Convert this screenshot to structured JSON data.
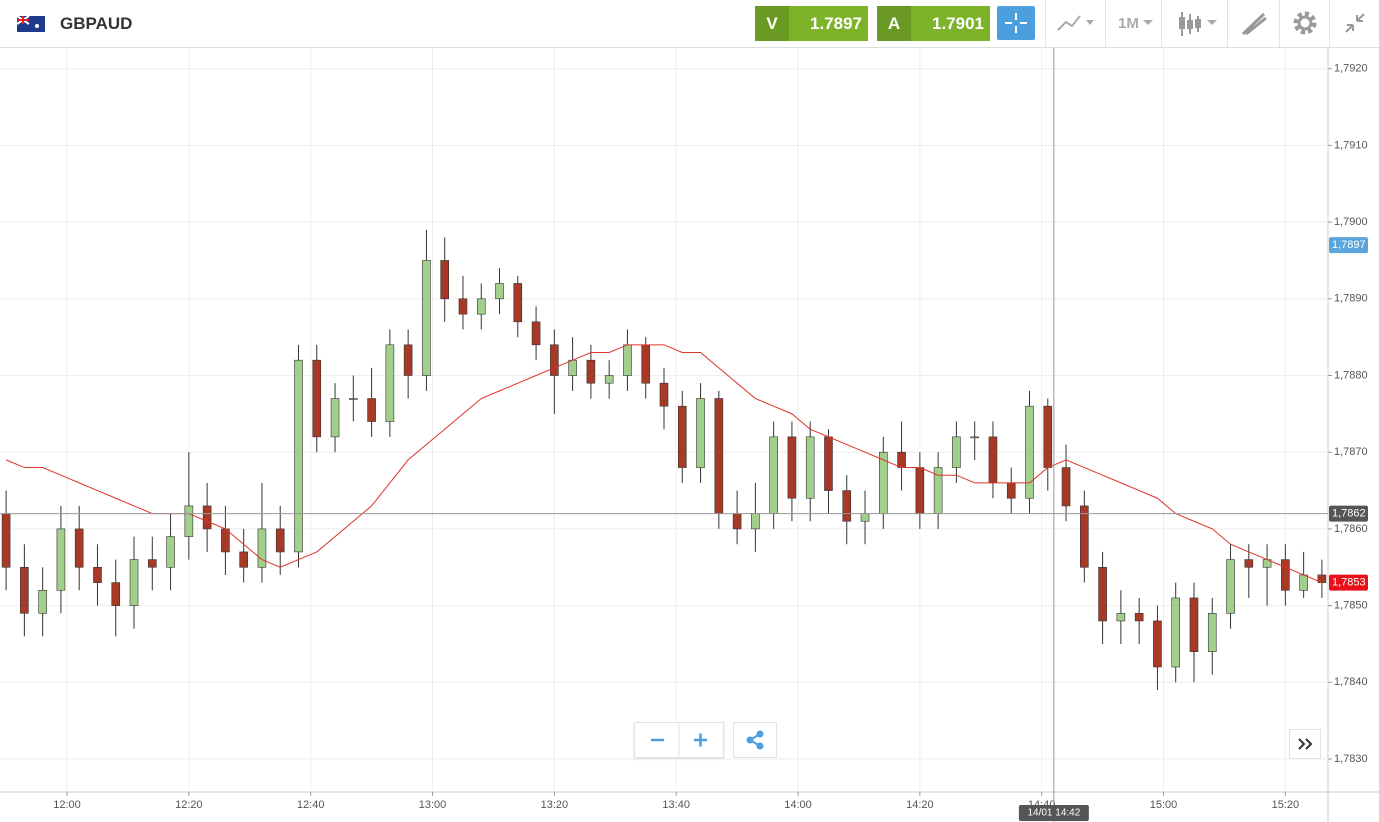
{
  "header": {
    "symbol": "GBPAUD",
    "sell_label": "V",
    "sell_price": "1.7897",
    "buy_label": "A",
    "buy_price": "1.7901",
    "interval": "1M"
  },
  "chart_data": {
    "type": "candlestick",
    "x": [
      710,
      713,
      716,
      719,
      722,
      725,
      728,
      731,
      734,
      737,
      740,
      743,
      746,
      749,
      752,
      755,
      758,
      761,
      764,
      767,
      770,
      773,
      776,
      779,
      782,
      785,
      788,
      791,
      794,
      797,
      800,
      803,
      806,
      809,
      812,
      815,
      818,
      821,
      824,
      827,
      830,
      833,
      836,
      839,
      842,
      845,
      848,
      851,
      854,
      857,
      860,
      863,
      866,
      869,
      872,
      875,
      878,
      881,
      884,
      887,
      890,
      893,
      896,
      899,
      902,
      905,
      908,
      911,
      914,
      917,
      920,
      923,
      926
    ],
    "open": [
      1.7862,
      1.7855,
      1.7849,
      1.7852,
      1.786,
      1.7855,
      1.7853,
      1.785,
      1.7856,
      1.7855,
      1.7859,
      1.7863,
      1.786,
      1.7857,
      1.7855,
      1.786,
      1.7857,
      1.7882,
      1.7872,
      1.7877,
      1.7877,
      1.7874,
      1.7884,
      1.788,
      1.7895,
      1.789,
      1.7888,
      1.789,
      1.7892,
      1.7887,
      1.7884,
      1.788,
      1.7882,
      1.7879,
      1.788,
      1.7884,
      1.7879,
      1.7876,
      1.7868,
      1.7877,
      1.7862,
      1.786,
      1.7862,
      1.7872,
      1.7864,
      1.7872,
      1.7865,
      1.7861,
      1.7862,
      1.787,
      1.7868,
      1.7862,
      1.7868,
      1.7872,
      1.7872,
      1.7866,
      1.7864,
      1.7876,
      1.7868,
      1.7863,
      1.7855,
      1.7848,
      1.7849,
      1.7848,
      1.7842,
      1.7851,
      1.7844,
      1.7849,
      1.7856,
      1.7855,
      1.7856,
      1.7852,
      1.7854
    ],
    "high": [
      1.7865,
      1.7858,
      1.7855,
      1.7863,
      1.7863,
      1.7858,
      1.7856,
      1.7859,
      1.7859,
      1.7862,
      1.787,
      1.7866,
      1.7863,
      1.786,
      1.7866,
      1.7863,
      1.7884,
      1.7884,
      1.7879,
      1.788,
      1.7881,
      1.7886,
      1.7886,
      1.7899,
      1.7898,
      1.7893,
      1.7892,
      1.7894,
      1.7893,
      1.7889,
      1.7886,
      1.7885,
      1.7884,
      1.7882,
      1.7886,
      1.7885,
      1.7881,
      1.7878,
      1.7879,
      1.7878,
      1.7865,
      1.7866,
      1.7874,
      1.7874,
      1.7874,
      1.7873,
      1.7867,
      1.7865,
      1.7872,
      1.7874,
      1.787,
      1.787,
      1.7874,
      1.7874,
      1.7874,
      1.7868,
      1.7878,
      1.7877,
      1.7871,
      1.7865,
      1.7857,
      1.7852,
      1.7851,
      1.785,
      1.7853,
      1.7853,
      1.7851,
      1.7858,
      1.7858,
      1.7858,
      1.7858,
      1.7857,
      1.7856
    ],
    "low": [
      1.7852,
      1.7846,
      1.7846,
      1.7849,
      1.7852,
      1.785,
      1.7846,
      1.7847,
      1.7852,
      1.7852,
      1.7856,
      1.7857,
      1.7854,
      1.7853,
      1.7853,
      1.7854,
      1.7855,
      1.787,
      1.787,
      1.7874,
      1.7872,
      1.7872,
      1.7877,
      1.7878,
      1.7887,
      1.7886,
      1.7886,
      1.7888,
      1.7885,
      1.7882,
      1.7875,
      1.7878,
      1.7877,
      1.7877,
      1.7878,
      1.7877,
      1.7873,
      1.7866,
      1.7866,
      1.786,
      1.7858,
      1.7857,
      1.786,
      1.7861,
      1.7861,
      1.7862,
      1.7858,
      1.7858,
      1.786,
      1.7865,
      1.786,
      1.786,
      1.7866,
      1.7869,
      1.7864,
      1.7862,
      1.7862,
      1.7865,
      1.7861,
      1.7853,
      1.7845,
      1.7845,
      1.7845,
      1.7839,
      1.784,
      1.784,
      1.7841,
      1.7847,
      1.7851,
      1.785,
      1.785,
      1.7851,
      1.7851
    ],
    "close": [
      1.7855,
      1.7849,
      1.7852,
      1.786,
      1.7855,
      1.7853,
      1.785,
      1.7856,
      1.7855,
      1.7859,
      1.7863,
      1.786,
      1.7857,
      1.7855,
      1.786,
      1.7857,
      1.7882,
      1.7872,
      1.7877,
      1.7877,
      1.7874,
      1.7884,
      1.788,
      1.7895,
      1.789,
      1.7888,
      1.789,
      1.7892,
      1.7887,
      1.7884,
      1.788,
      1.7882,
      1.7879,
      1.788,
      1.7884,
      1.7879,
      1.7876,
      1.7868,
      1.7877,
      1.7862,
      1.786,
      1.7862,
      1.7872,
      1.7864,
      1.7872,
      1.7865,
      1.7861,
      1.7862,
      1.787,
      1.7868,
      1.7862,
      1.7868,
      1.7872,
      1.7872,
      1.7866,
      1.7864,
      1.7876,
      1.7868,
      1.7863,
      1.7855,
      1.7848,
      1.7849,
      1.7848,
      1.7842,
      1.7851,
      1.7844,
      1.7849,
      1.7856,
      1.7855,
      1.7856,
      1.7852,
      1.7854,
      1.7853
    ],
    "up_color": "#a3cf8c",
    "down_color": "#a63a27",
    "ma": {
      "color": "#e0332c",
      "values": [
        1.7869,
        1.7868,
        1.7868,
        1.7867,
        1.7866,
        1.7865,
        1.7864,
        1.7863,
        1.7862,
        1.7862,
        1.7862,
        1.7861,
        1.786,
        1.7858,
        1.7856,
        1.7855,
        1.7856,
        1.7857,
        1.7859,
        1.7861,
        1.7863,
        1.7866,
        1.7869,
        1.7871,
        1.7873,
        1.7875,
        1.7877,
        1.7878,
        1.7879,
        1.788,
        1.7881,
        1.7882,
        1.7883,
        1.7883,
        1.7884,
        1.7884,
        1.7884,
        1.7883,
        1.7883,
        1.7881,
        1.7879,
        1.7877,
        1.7876,
        1.7875,
        1.7873,
        1.7872,
        1.7871,
        1.787,
        1.7869,
        1.7868,
        1.7868,
        1.7867,
        1.7867,
        1.7866,
        1.7866,
        1.7866,
        1.7866,
        1.7868,
        1.7869,
        1.7868,
        1.7867,
        1.7866,
        1.7865,
        1.7864,
        1.7862,
        1.7861,
        1.786,
        1.7858,
        1.7857,
        1.7856,
        1.7855,
        1.7854,
        1.7853
      ]
    },
    "xlim": [
      709,
      927
    ],
    "xticks": [
      {
        "value": 720,
        "label": "12:00"
      },
      {
        "value": 740,
        "label": "12:20"
      },
      {
        "value": 760,
        "label": "12:40"
      },
      {
        "value": 780,
        "label": "13:00"
      },
      {
        "value": 800,
        "label": "13:20"
      },
      {
        "value": 820,
        "label": "13:40"
      },
      {
        "value": 840,
        "label": "14:00"
      },
      {
        "value": 860,
        "label": "14:20"
      },
      {
        "value": 880,
        "label": "14:40"
      },
      {
        "value": 900,
        "label": "15:00"
      },
      {
        "value": 920,
        "label": "15:20"
      }
    ],
    "ylim": [
      1.78257,
      1.79227
    ],
    "yticks": [
      {
        "value": 1.783,
        "label": "1,7830"
      },
      {
        "value": 1.784,
        "label": "1,7840"
      },
      {
        "value": 1.785,
        "label": "1,7850"
      },
      {
        "value": 1.786,
        "label": "1,7860"
      },
      {
        "value": 1.787,
        "label": "1,7870"
      },
      {
        "value": 1.788,
        "label": "1,7880"
      },
      {
        "value": 1.789,
        "label": "1,7890"
      },
      {
        "value": 1.79,
        "label": "1,7900"
      },
      {
        "value": 1.791,
        "label": "1,7910"
      },
      {
        "value": 1.792,
        "label": "1,7920"
      }
    ],
    "grid": true,
    "bid_marker": {
      "value": 1.7897,
      "label": "1,7897",
      "color": "#5aa6dc"
    },
    "last_marker": {
      "value": 1.7853,
      "label": "1,7853",
      "color": "#e8111a"
    },
    "crosshair": {
      "x": 882,
      "y": 1.7862,
      "x_label": "14/01 14:42",
      "y_label": "1,7862"
    }
  }
}
